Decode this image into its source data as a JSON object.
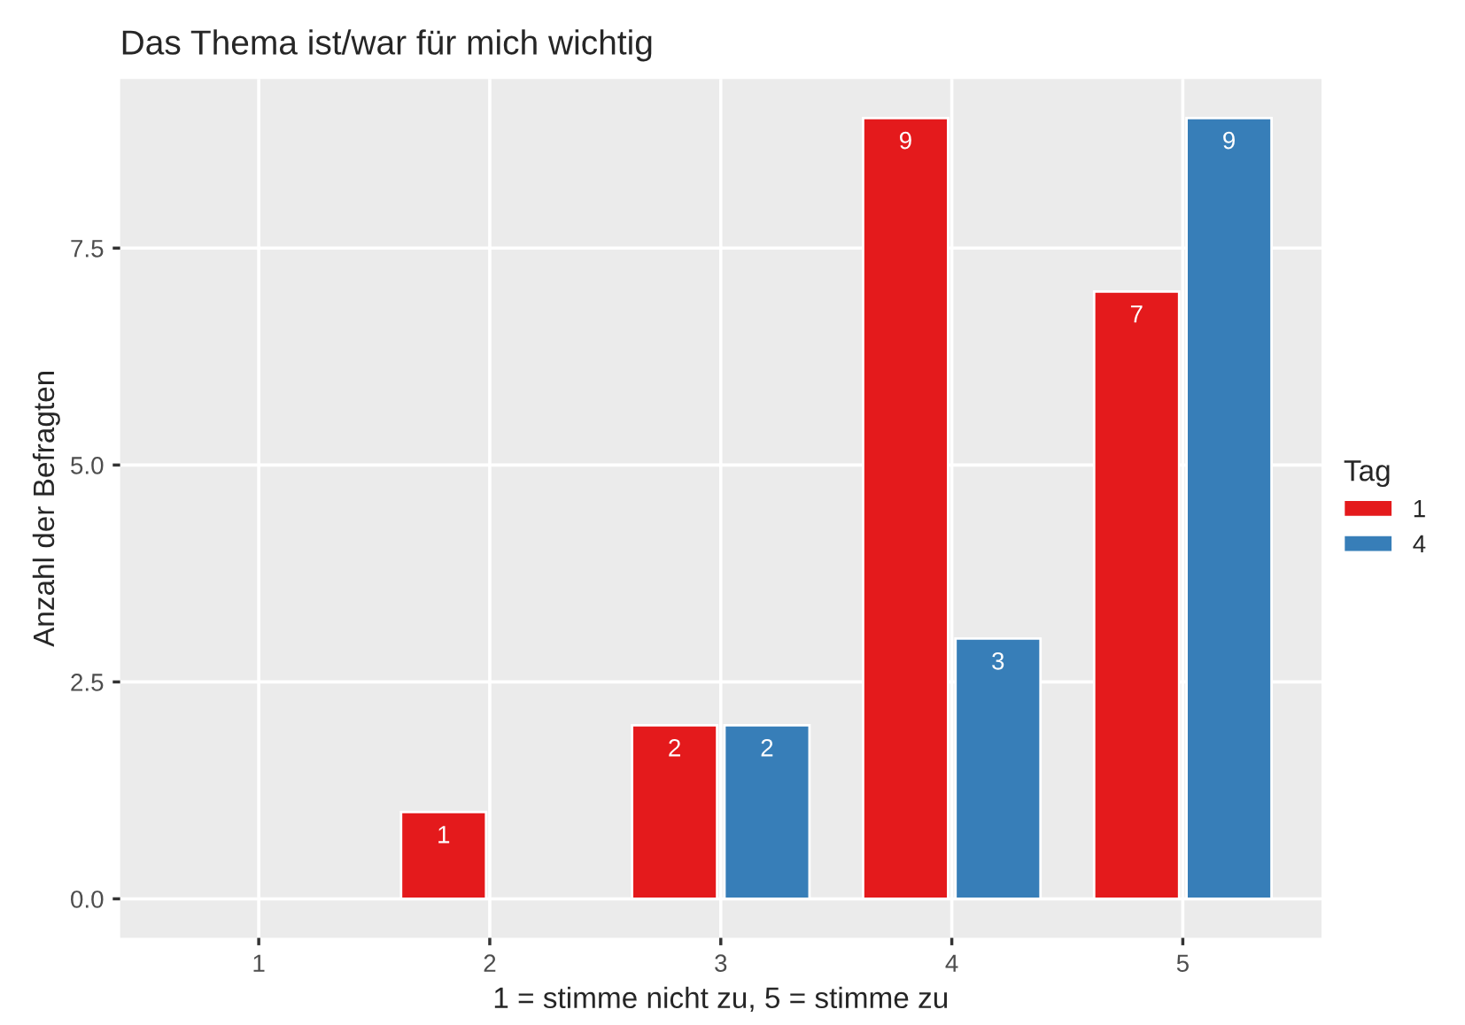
{
  "chart_data": {
    "type": "bar",
    "title": "Das Thema ist/war für mich wichtig",
    "xlabel": "1 = stimme nicht zu, 5 = stimme zu",
    "ylabel": "Anzahl der Befragten",
    "legend_title": "Tag",
    "categories": [
      "1",
      "2",
      "3",
      "4",
      "5"
    ],
    "series": [
      {
        "name": "1",
        "color": "#e41a1c",
        "values": [
          null,
          1,
          2,
          9,
          7
        ]
      },
      {
        "name": "4",
        "color": "#377eb8",
        "values": [
          null,
          null,
          2,
          3,
          9
        ]
      }
    ],
    "ylim": [
      -0.45,
      9.45
    ],
    "yticks": [
      {
        "value": 0,
        "label": "0.0"
      },
      {
        "value": 2.5,
        "label": "2.5"
      },
      {
        "value": 5,
        "label": "5.0"
      },
      {
        "value": 7.5,
        "label": "7.5"
      }
    ],
    "grid": true,
    "legend": "right",
    "data_labels": true
  }
}
